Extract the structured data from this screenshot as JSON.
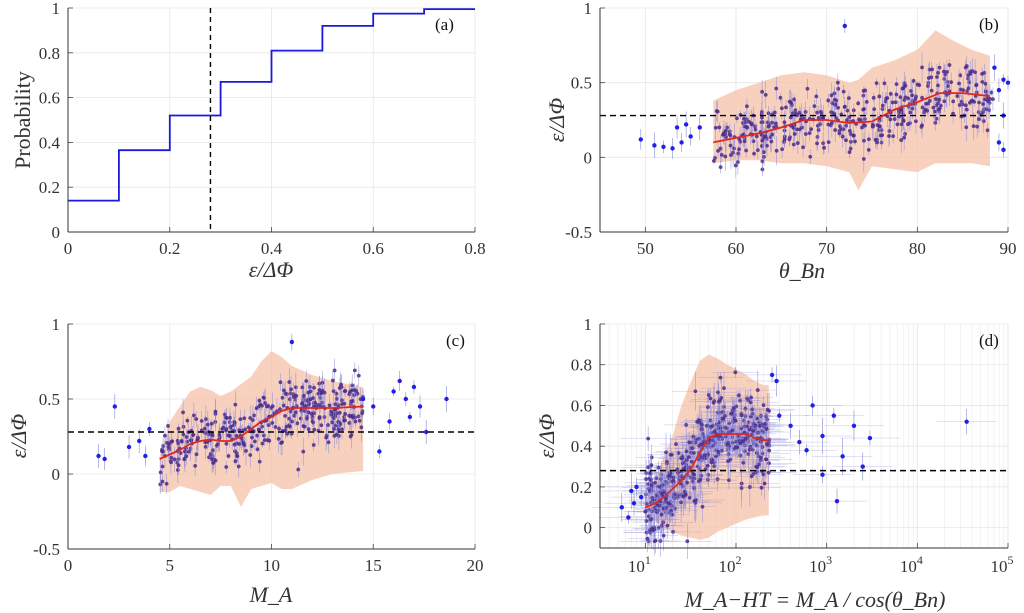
{
  "figure": {
    "colors": {
      "step": "#1a1adc",
      "points": "#2020e6",
      "points_dense": "#4a2a8c",
      "median": "#e0281c",
      "band": "#f6c2a8",
      "threshold": "#000000",
      "grid": "#e6e6e6"
    }
  },
  "chart_data": [
    {
      "id": "a",
      "panel_label": "(a)",
      "type": "line",
      "step": true,
      "xlabel": "ε/ΔΦ",
      "ylabel": "Probability",
      "xlim": [
        0,
        0.8
      ],
      "ylim": [
        0,
        1
      ],
      "x_ticks": [
        0,
        0.2,
        0.4,
        0.6,
        0.8
      ],
      "x_tick_labels": [
        "0",
        "0.2",
        "0.4",
        "0.6",
        "0.8"
      ],
      "y_ticks": [
        0,
        0.2,
        0.4,
        0.6,
        0.8,
        1
      ],
      "y_tick_labels": [
        "0",
        "0.2",
        "0.4",
        "0.6",
        "0.8",
        "1"
      ],
      "x": [
        0,
        0.1,
        0.1,
        0.2,
        0.2,
        0.3,
        0.3,
        0.4,
        0.4,
        0.5,
        0.5,
        0.6,
        0.6,
        0.7,
        0.7,
        0.8
      ],
      "y": [
        0.14,
        0.14,
        0.365,
        0.365,
        0.52,
        0.52,
        0.67,
        0.67,
        0.81,
        0.81,
        0.92,
        0.92,
        0.975,
        0.975,
        0.995,
        0.995
      ],
      "threshold_x": 0.28
    },
    {
      "id": "b",
      "panel_label": "(b)",
      "type": "scatter",
      "xlabel": "θ_Bn",
      "ylabel": "ε/ΔΦ",
      "xlim": [
        45,
        90
      ],
      "ylim": [
        -0.5,
        1
      ],
      "x_ticks": [
        50,
        60,
        70,
        80,
        90
      ],
      "x_tick_labels": [
        "50",
        "60",
        "70",
        "80",
        "90"
      ],
      "y_ticks": [
        -0.5,
        0,
        0.5,
        1
      ],
      "y_tick_labels": [
        "-0.5",
        "0",
        "0.5",
        "1"
      ],
      "threshold_y": 0.28,
      "median": {
        "x": [
          57.5,
          60,
          62.5,
          65,
          67.5,
          70,
          72.5,
          75,
          77.5,
          80,
          82.5,
          85,
          88
        ],
        "y": [
          0.1,
          0.13,
          0.16,
          0.2,
          0.25,
          0.25,
          0.23,
          0.24,
          0.32,
          0.37,
          0.43,
          0.43,
          0.41
        ]
      },
      "band": {
        "x": [
          57.5,
          60,
          62.5,
          65,
          67.5,
          70,
          72.5,
          73.5,
          75,
          77.5,
          80,
          82,
          84,
          86,
          88
        ],
        "upper": [
          0.38,
          0.45,
          0.5,
          0.55,
          0.57,
          0.55,
          0.5,
          0.52,
          0.6,
          0.65,
          0.72,
          0.85,
          0.78,
          0.72,
          0.68
        ],
        "lower": [
          -0.04,
          -0.02,
          -0.02,
          -0.04,
          -0.04,
          -0.06,
          -0.1,
          -0.22,
          -0.06,
          -0.08,
          -0.1,
          -0.04,
          -0.04,
          -0.04,
          -0.06
        ]
      },
      "points": {
        "x_range": [
          57.5,
          88.5
        ],
        "y_center_from_median": true,
        "spread": 0.17,
        "count": 420,
        "outliers": [
          [
            49.5,
            0.12
          ],
          [
            51,
            0.08
          ],
          [
            52,
            0.07
          ],
          [
            53,
            0.06
          ],
          [
            53.5,
            0.2
          ],
          [
            54,
            0.1
          ],
          [
            54.5,
            0.22
          ],
          [
            55,
            0.14
          ],
          [
            56,
            0.2
          ],
          [
            72,
            0.88
          ],
          [
            88.5,
            0.6
          ],
          [
            89,
            0.45
          ],
          [
            89.5,
            0.28
          ],
          [
            89.5,
            0.52
          ],
          [
            90,
            0.5
          ],
          [
            89,
            0.1
          ],
          [
            89.5,
            0.05
          ]
        ]
      }
    },
    {
      "id": "c",
      "panel_label": "(c)",
      "type": "scatter",
      "xlabel": "M_A",
      "ylabel": "ε/ΔΦ",
      "xlim": [
        0,
        20
      ],
      "ylim": [
        -0.5,
        1
      ],
      "x_ticks": [
        0,
        5,
        10,
        15,
        20
      ],
      "x_tick_labels": [
        "0",
        "5",
        "10",
        "15",
        "20"
      ],
      "y_ticks": [
        -0.5,
        0,
        0.5,
        1
      ],
      "y_tick_labels": [
        "-0.5",
        "0",
        "0.5",
        "1"
      ],
      "threshold_y": 0.28,
      "median": {
        "x": [
          4.5,
          5,
          5.5,
          6,
          6.5,
          7,
          7.5,
          8,
          8.5,
          9,
          9.5,
          10,
          10.5,
          11,
          12,
          13,
          14.5
        ],
        "y": [
          0.1,
          0.13,
          0.16,
          0.2,
          0.22,
          0.23,
          0.22,
          0.22,
          0.25,
          0.3,
          0.35,
          0.38,
          0.42,
          0.44,
          0.44,
          0.44,
          0.45
        ]
      },
      "band": {
        "x": [
          4.5,
          5,
          5.5,
          6,
          6.5,
          7,
          7.5,
          8,
          8.5,
          9,
          9.5,
          10,
          10.5,
          11,
          12,
          13,
          14.5
        ],
        "upper": [
          0.12,
          0.35,
          0.45,
          0.55,
          0.58,
          0.56,
          0.52,
          0.55,
          0.6,
          0.65,
          0.75,
          0.82,
          0.78,
          0.72,
          0.66,
          0.62,
          0.58
        ],
        "lower": [
          -0.12,
          -0.12,
          -0.08,
          -0.1,
          -0.12,
          -0.14,
          -0.08,
          -0.08,
          -0.22,
          -0.1,
          -0.08,
          -0.06,
          -0.1,
          -0.1,
          -0.04,
          0.0,
          0.02
        ]
      },
      "points": {
        "x_range": [
          4.5,
          14.5
        ],
        "y_center_from_median": true,
        "spread": 0.17,
        "count": 380,
        "outliers": [
          [
            1.5,
            0.12
          ],
          [
            1.8,
            0.1
          ],
          [
            2.3,
            0.45
          ],
          [
            3.0,
            0.18
          ],
          [
            3.5,
            0.22
          ],
          [
            3.8,
            0.12
          ],
          [
            4.0,
            0.3
          ],
          [
            11.0,
            0.88
          ],
          [
            14.5,
            0.5
          ],
          [
            15.0,
            0.45
          ],
          [
            15.3,
            0.15
          ],
          [
            16.0,
            0.55
          ],
          [
            16.3,
            0.62
          ],
          [
            16.6,
            0.5
          ],
          [
            17.0,
            0.58
          ],
          [
            17.3,
            0.45
          ],
          [
            17.6,
            0.28
          ],
          [
            18.6,
            0.5
          ],
          [
            15.8,
            0.35
          ],
          [
            16.8,
            0.38
          ]
        ]
      }
    },
    {
      "id": "d",
      "panel_label": "(d)",
      "type": "scatter",
      "xlabel": "M_A−HT = M_A / cos(θ_Bn)",
      "ylabel": "ε/ΔΦ",
      "xscale": "log",
      "xlim_log10": [
        0.5,
        5
      ],
      "ylim": [
        -0.1,
        1
      ],
      "x_ticks": [
        1,
        2,
        3,
        4,
        5
      ],
      "x_tick_bases": [
        "10",
        "10",
        "10",
        "10",
        "10"
      ],
      "x_tick_exps": [
        "1",
        "2",
        "3",
        "4",
        "5"
      ],
      "y_ticks": [
        0,
        0.2,
        0.4,
        0.6,
        0.8,
        1
      ],
      "y_tick_labels": [
        "0",
        "0.2",
        "0.4",
        "0.6",
        "0.8",
        "1"
      ],
      "threshold_y": 0.28,
      "median": {
        "x": [
          10,
          13,
          16,
          20,
          25,
          32,
          40,
          50,
          63,
          80,
          100,
          130,
          160,
          200,
          230
        ],
        "y": [
          0.1,
          0.12,
          0.15,
          0.19,
          0.23,
          0.29,
          0.37,
          0.44,
          0.46,
          0.46,
          0.46,
          0.46,
          0.44,
          0.43,
          0.43
        ]
      },
      "band": {
        "x": [
          10,
          13,
          16,
          20,
          25,
          32,
          40,
          50,
          63,
          80,
          100,
          130,
          160,
          200,
          230
        ],
        "upper": [
          0.12,
          0.25,
          0.35,
          0.45,
          0.6,
          0.72,
          0.82,
          0.85,
          0.83,
          0.8,
          0.78,
          0.75,
          0.72,
          0.7,
          0.7
        ],
        "lower": [
          0.05,
          0.03,
          0.0,
          -0.02,
          -0.04,
          -0.05,
          -0.06,
          -0.05,
          -0.02,
          0.0,
          0.02,
          0.04,
          0.05,
          0.06,
          0.06
        ]
      },
      "points": {
        "x_range_log10": [
          1.0,
          2.37
        ],
        "y_center_from_median": true,
        "spread": 0.17,
        "count": 460,
        "outliers": [
          [
            5.5,
            0.1
          ],
          [
            6.5,
            0.05
          ],
          [
            7,
            0.18
          ],
          [
            7.5,
            0.12
          ],
          [
            8,
            0.2
          ],
          [
            9,
            0.15
          ],
          [
            300,
            0.55
          ],
          [
            400,
            0.5
          ],
          [
            500,
            0.42
          ],
          [
            600,
            0.38
          ],
          [
            700,
            0.6
          ],
          [
            900,
            0.45
          ],
          [
            1200,
            0.55
          ],
          [
            1500,
            0.35
          ],
          [
            2000,
            0.5
          ],
          [
            2500,
            0.3
          ],
          [
            1300,
            0.13
          ],
          [
            3000,
            0.44
          ],
          [
            35000,
            0.52
          ],
          [
            900,
            0.26
          ],
          [
            280,
            0.72
          ],
          [
            250,
            0.75
          ]
        ]
      }
    }
  ]
}
